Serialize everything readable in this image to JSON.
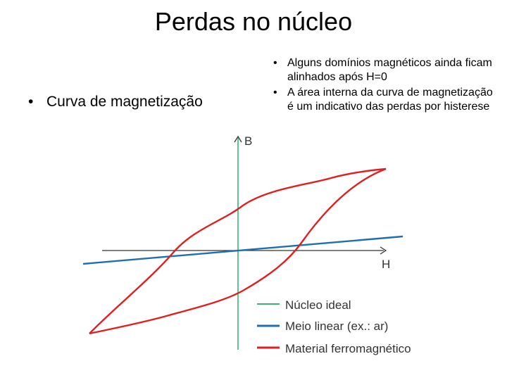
{
  "title": "Perdas no núcleo",
  "bullets_left": [
    "Curva de magnetização"
  ],
  "bullets_right": [
    "Alguns domínios magnéticos ainda ficam alinhados após H=0",
    "A área interna da curva de magnetização é um indicativo das perdas por histerese"
  ],
  "diagram": {
    "axis_x_label": "H",
    "axis_y_label": "B",
    "legend": [
      {
        "label": "Núcleo ideal",
        "color": "#3cb371"
      },
      {
        "label": "Meio linear (ex.: ar)",
        "color": "#1f6fb0"
      },
      {
        "label": "Material ferromagnético",
        "color": "#e02020"
      }
    ]
  },
  "colors": {
    "ideal": "#3cb371",
    "linear": "#1f6fb0",
    "ferro": "#e02020",
    "axis": "#333333"
  }
}
